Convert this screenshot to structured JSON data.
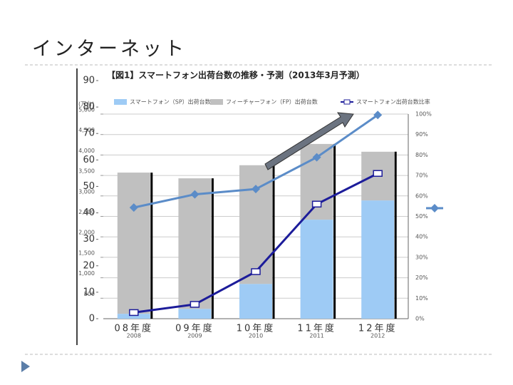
{
  "title": "インターネット",
  "chart_data": [
    {
      "type": "bar",
      "title": "【図1】スマートフォン出荷台数の推移・予測（2013年3月予測）",
      "y_label": "(万台)",
      "categories": [
        "2008",
        "2009",
        "2010",
        "2011",
        "2012"
      ],
      "stacked": true,
      "grid": true,
      "series": [
        {
          "name": "スマートフォン（SP）出荷台数",
          "color": "#9ecbf5",
          "values": [
            120,
            240,
            850,
            2420,
            2890
          ]
        },
        {
          "name": "フィーチャーフォン（FP）出荷台数",
          "color": "#c0c0c0",
          "values": [
            3450,
            3190,
            2900,
            1850,
            1190
          ]
        },
        {
          "name": "スマートフォン出荷台数比率",
          "color": "#1c1c9a",
          "axis": "y2",
          "type": "line",
          "values": [
            3,
            7,
            23,
            56,
            71
          ]
        }
      ],
      "ylim": [
        0,
        5000
      ],
      "yticks": [
        500,
        {
          "value": 1000,
          "label": "1,000"
        },
        {
          "value": 1500,
          "label": "1,500"
        },
        {
          "value": 2000,
          "label": "2,000"
        },
        {
          "value": 2500,
          "label": "2,500"
        },
        {
          "value": 3000,
          "label": "3,000"
        },
        {
          "value": 3500,
          "label": "3,500"
        },
        {
          "value": 4000,
          "label": "4,000"
        },
        {
          "value": 4500,
          "label": "4,500"
        },
        {
          "value": 5000,
          "label": "5,000"
        }
      ],
      "y2lim": [
        0,
        100
      ],
      "y2ticks": [
        {
          "value": 0,
          "label": "0%"
        },
        {
          "value": 10,
          "label": "10%"
        },
        {
          "value": 20,
          "label": "20%"
        },
        {
          "value": 30,
          "label": "30%"
        },
        {
          "value": 40,
          "label": "40%"
        },
        {
          "value": 50,
          "label": "50%"
        },
        {
          "value": 60,
          "label": "60%"
        },
        {
          "value": 70,
          "label": "70%"
        },
        {
          "value": 80,
          "label": "80%"
        },
        {
          "value": 90,
          "label": "90%"
        },
        {
          "value": 100,
          "label": "100%"
        }
      ]
    },
    {
      "type": "line",
      "categories": [
        "08年度",
        "09年度",
        "10年度",
        "11年度",
        "12年度"
      ],
      "color": "#5b8cc8",
      "values": [
        42,
        47,
        49,
        61,
        77
      ],
      "ylim": [
        0,
        90
      ],
      "yticks": [
        0,
        10,
        20,
        30,
        40,
        50,
        60,
        70,
        80,
        90
      ]
    }
  ]
}
